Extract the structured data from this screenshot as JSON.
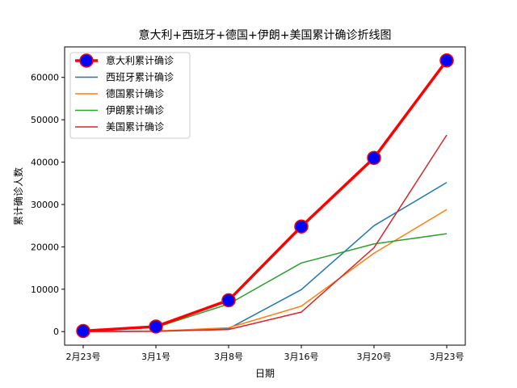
{
  "chart_data": {
    "type": "line",
    "title": "意大利+西班牙+德国+伊朗+美国累计确诊折线图",
    "xlabel": "日期",
    "ylabel": "累计确诊人数",
    "categories": [
      "2月23号",
      "3月1号",
      "3月8号",
      "3月16号",
      "3月20号",
      "3月23号"
    ],
    "ylim": [
      -3200,
      67200
    ],
    "yticks": [
      0,
      10000,
      20000,
      30000,
      40000,
      50000,
      60000
    ],
    "legend_position": "top-left",
    "grid": false,
    "series": [
      {
        "name": "意大利累计确诊",
        "values": [
          150,
          1200,
          7400,
          24800,
          41000,
          64000
        ],
        "color": "#ff0000",
        "marker": "circle",
        "marker_color": "#0000ff",
        "emphasis": true
      },
      {
        "name": "西班牙累计确诊",
        "values": [
          0,
          80,
          700,
          9900,
          25000,
          35200
        ],
        "color": "#1f77b4"
      },
      {
        "name": "德国累计确诊",
        "values": [
          15,
          130,
          900,
          6000,
          18500,
          28800
        ],
        "color": "#ff7f0e"
      },
      {
        "name": "伊朗累计确诊",
        "values": [
          40,
          1000,
          6500,
          16200,
          20700,
          23100
        ],
        "color": "#2ca02c"
      },
      {
        "name": "美国累计确诊",
        "values": [
          35,
          75,
          500,
          4600,
          19800,
          46400
        ],
        "color": "#d62728"
      }
    ]
  }
}
